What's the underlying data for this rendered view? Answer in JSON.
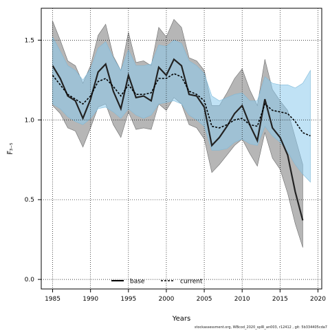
{
  "chart_data": {
    "type": "line",
    "xlabel": "Years",
    "ylabel": "F̅₃₋₅",
    "xlim": [
      1983.5,
      2020.5
    ],
    "ylim": [
      -0.06,
      1.7
    ],
    "x_ticks": [
      1985,
      1990,
      1995,
      2000,
      2005,
      2010,
      2015,
      2020
    ],
    "y_ticks": [
      0.0,
      0.5,
      1.0,
      1.5
    ],
    "y_tick_labels": [
      "0.0",
      "0.5",
      "1.0",
      "1.5"
    ],
    "grid": "dotted",
    "legend": {
      "position": "bottom-center",
      "entries": [
        "base",
        "current"
      ]
    },
    "series": [
      {
        "name": "base",
        "color": "#000000",
        "band_color": "#9a9a9a",
        "x": [
          1985,
          1986,
          1987,
          1988,
          1989,
          1990,
          1991,
          1992,
          1993,
          1994,
          1995,
          1996,
          1997,
          1998,
          1999,
          2000,
          2001,
          2002,
          2003,
          2004,
          2005,
          2006,
          2007,
          2008,
          2009,
          2010,
          2011,
          2012,
          2013,
          2014,
          2015,
          2016,
          2017,
          2018
        ],
        "y": [
          1.34,
          1.26,
          1.15,
          1.12,
          1.01,
          1.13,
          1.3,
          1.35,
          1.18,
          1.07,
          1.28,
          1.14,
          1.15,
          1.12,
          1.33,
          1.28,
          1.38,
          1.34,
          1.16,
          1.15,
          1.08,
          0.84,
          0.89,
          0.96,
          1.04,
          1.09,
          0.97,
          0.87,
          1.13,
          0.95,
          0.89,
          0.78,
          0.55,
          0.37
        ],
        "upper": [
          1.62,
          1.5,
          1.37,
          1.34,
          1.23,
          1.34,
          1.53,
          1.6,
          1.4,
          1.31,
          1.55,
          1.36,
          1.37,
          1.34,
          1.58,
          1.52,
          1.63,
          1.58,
          1.39,
          1.37,
          1.31,
          1.09,
          1.09,
          1.17,
          1.26,
          1.32,
          1.19,
          1.09,
          1.38,
          1.19,
          1.12,
          1.06,
          0.89,
          0.72
        ],
        "lower": [
          1.09,
          1.04,
          0.95,
          0.93,
          0.83,
          0.95,
          1.08,
          1.1,
          0.97,
          0.89,
          1.05,
          0.94,
          0.95,
          0.94,
          1.1,
          1.06,
          1.14,
          1.1,
          0.97,
          0.95,
          0.88,
          0.67,
          0.72,
          0.78,
          0.84,
          0.88,
          0.79,
          0.71,
          0.92,
          0.76,
          0.69,
          0.54,
          0.35,
          0.2
        ]
      },
      {
        "name": "current",
        "color": "#000000",
        "band_color": "#8ccbec",
        "x": [
          1985,
          1986,
          1987,
          1988,
          1989,
          1990,
          1991,
          1992,
          1993,
          1994,
          1995,
          1996,
          1997,
          1998,
          1999,
          2000,
          2001,
          2002,
          2003,
          2004,
          2005,
          2006,
          2007,
          2008,
          2009,
          2010,
          2011,
          2012,
          2013,
          2014,
          2015,
          2016,
          2017,
          2018,
          2019
        ],
        "y": [
          1.28,
          1.22,
          1.16,
          1.13,
          1.1,
          1.15,
          1.24,
          1.26,
          1.21,
          1.15,
          1.22,
          1.16,
          1.16,
          1.17,
          1.26,
          1.26,
          1.29,
          1.27,
          1.18,
          1.16,
          1.12,
          0.96,
          0.95,
          0.97,
          1.0,
          1.01,
          0.97,
          0.96,
          1.1,
          1.06,
          1.05,
          1.04,
          0.99,
          0.92,
          0.9
        ],
        "upper": [
          1.52,
          1.43,
          1.34,
          1.31,
          1.25,
          1.32,
          1.45,
          1.49,
          1.39,
          1.31,
          1.44,
          1.34,
          1.34,
          1.35,
          1.47,
          1.46,
          1.5,
          1.48,
          1.37,
          1.34,
          1.29,
          1.15,
          1.12,
          1.14,
          1.16,
          1.17,
          1.12,
          1.12,
          1.27,
          1.23,
          1.22,
          1.22,
          1.2,
          1.23,
          1.31
        ],
        "lower": [
          1.1,
          1.07,
          1.02,
          0.99,
          0.97,
          1.01,
          1.07,
          1.08,
          1.05,
          1.01,
          1.07,
          1.03,
          1.01,
          1.03,
          1.1,
          1.11,
          1.12,
          1.1,
          1.03,
          1.0,
          0.96,
          0.81,
          0.81,
          0.82,
          0.86,
          0.88,
          0.85,
          0.84,
          0.96,
          0.9,
          0.86,
          0.8,
          0.72,
          0.66,
          0.61
        ]
      }
    ]
  },
  "footer_text": "stockassessment.org, WBcod_2020_splR_an003, r12412 , git: 5b334405cda7"
}
